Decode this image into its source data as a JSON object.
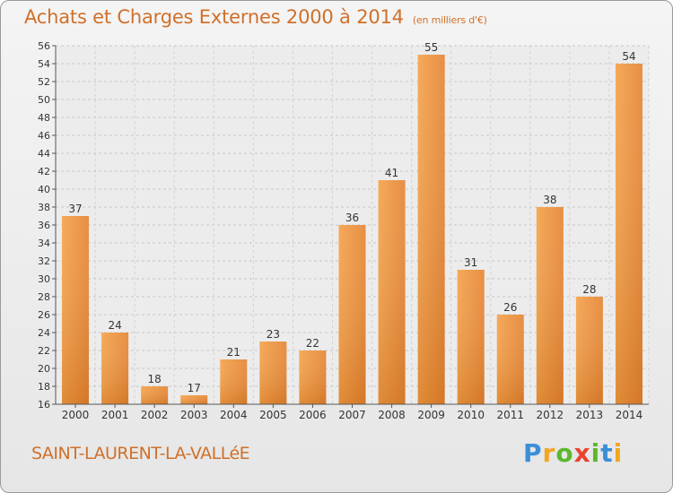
{
  "title": "Achats et Charges Externes 2000 à 2014",
  "subtitle": "(en milliers d'€)",
  "commune": "SAINT-LAURENT-LA-VALLéE",
  "logo": {
    "letters": [
      "P",
      "r",
      "o",
      "x",
      "i",
      "t",
      "i"
    ],
    "colors": [
      "#3a8fd6",
      "#f2a623",
      "#5cb82f",
      "#e8442f",
      "#5cb82f",
      "#3a8fd6",
      "#f2a623"
    ]
  },
  "colors": {
    "bar_light": "#f7a64f",
    "bar_dark": "#d8731e",
    "title": "#d0702a"
  },
  "chart_data": {
    "type": "bar",
    "title": "Achats et Charges Externes 2000 à 2014",
    "xlabel": "",
    "ylabel": "",
    "categories": [
      "2000",
      "2001",
      "2002",
      "2003",
      "2004",
      "2005",
      "2006",
      "2007",
      "2008",
      "2009",
      "2010",
      "2011",
      "2012",
      "2013",
      "2014"
    ],
    "values": [
      37,
      24,
      18,
      17,
      21,
      23,
      22,
      36,
      41,
      55,
      31,
      26,
      38,
      28,
      54
    ],
    "ylim": [
      16,
      56
    ],
    "yticks": [
      16,
      18,
      20,
      22,
      24,
      26,
      28,
      30,
      32,
      34,
      36,
      38,
      40,
      42,
      44,
      46,
      48,
      50,
      52,
      54,
      56
    ],
    "grid": true,
    "data_labels": true
  }
}
